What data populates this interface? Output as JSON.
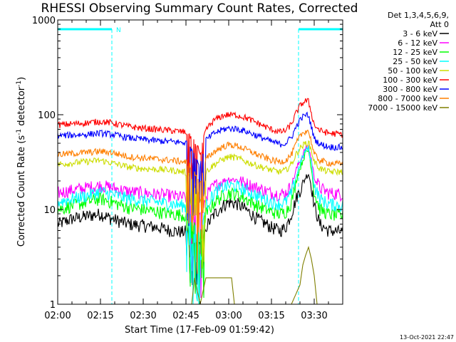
{
  "chart_data": {
    "type": "line",
    "title": "RHESSI Observing Summary Count Rates, Corrected",
    "xlabel": "Start Time (17-Feb-09 01:59:42)",
    "ylabel_text": "Corrected Count Rate (s",
    "ylabel_sup1": "-1",
    "ylabel_mid": " detector",
    "ylabel_sup2": "-1",
    "ylabel_end": ")",
    "y_scale": "log",
    "ylim": [
      1,
      1000
    ],
    "xlim_minutes": [
      0,
      100
    ],
    "x_ticks": [
      {
        "min": 0,
        "label": "02:00"
      },
      {
        "min": 15,
        "label": "02:15"
      },
      {
        "min": 30,
        "label": "02:30"
      },
      {
        "min": 45,
        "label": "02:45"
      },
      {
        "min": 60,
        "label": "03:00"
      },
      {
        "min": 75,
        "label": "03:15"
      },
      {
        "min": 90,
        "label": "03:30"
      }
    ],
    "y_ticks": [
      {
        "val": 1,
        "label": "1"
      },
      {
        "val": 10,
        "label": "10"
      },
      {
        "val": 100,
        "label": "100"
      },
      {
        "val": 1000,
        "label": "1000"
      }
    ],
    "legend_header": [
      "Det 1,3,4,5,6,9,",
      "Att 0"
    ],
    "night_intervals": [
      [
        0,
        19
      ],
      [
        84.5,
        100
      ]
    ],
    "night_color": "#00ffff",
    "saa_flag_label": "N",
    "saa_flag_at": 19,
    "series": [
      {
        "name": "3 - 6 keV",
        "color": "#000000",
        "points": [
          [
            0,
            7
          ],
          [
            5,
            8
          ],
          [
            10,
            8.5
          ],
          [
            15,
            9
          ],
          [
            19,
            8
          ],
          [
            25,
            7
          ],
          [
            30,
            6.8
          ],
          [
            35,
            6.5
          ],
          [
            40,
            6
          ],
          [
            44,
            5.8
          ],
          [
            46,
            6
          ],
          [
            50,
            4
          ],
          [
            52,
            6.5
          ],
          [
            55,
            9
          ],
          [
            58,
            11
          ],
          [
            60,
            12
          ],
          [
            63,
            11.5
          ],
          [
            66,
            10
          ],
          [
            70,
            8
          ],
          [
            75,
            6.5
          ],
          [
            78,
            6
          ],
          [
            80,
            6.5
          ],
          [
            82,
            9
          ],
          [
            84,
            14
          ],
          [
            85.5,
            17
          ],
          [
            87,
            22
          ],
          [
            88,
            24
          ],
          [
            89,
            18
          ],
          [
            90,
            11
          ],
          [
            92,
            7
          ],
          [
            95,
            6
          ],
          [
            100,
            5.8
          ]
        ]
      },
      {
        "name": "6 - 12 keV",
        "color": "#ff00ff",
        "points": [
          [
            0,
            15
          ],
          [
            5,
            16
          ],
          [
            10,
            17
          ],
          [
            15,
            18
          ],
          [
            19,
            17
          ],
          [
            25,
            15.5
          ],
          [
            30,
            15
          ],
          [
            35,
            14.5
          ],
          [
            40,
            14
          ],
          [
            44,
            13.5
          ],
          [
            46,
            13
          ],
          [
            50,
            8
          ],
          [
            52,
            14
          ],
          [
            55,
            18
          ],
          [
            58,
            20
          ],
          [
            60,
            21
          ],
          [
            63,
            20.5
          ],
          [
            66,
            19
          ],
          [
            70,
            17
          ],
          [
            75,
            15
          ],
          [
            78,
            14.5
          ],
          [
            80,
            15
          ],
          [
            82,
            18
          ],
          [
            84,
            28
          ],
          [
            85.5,
            35
          ],
          [
            87,
            44
          ],
          [
            88,
            46
          ],
          [
            89,
            34
          ],
          [
            90,
            22
          ],
          [
            92,
            17
          ],
          [
            95,
            15
          ],
          [
            100,
            14.5
          ]
        ]
      },
      {
        "name": "12 - 25 keV",
        "color": "#00ff00",
        "points": [
          [
            0,
            10
          ],
          [
            5,
            11
          ],
          [
            10,
            12
          ],
          [
            15,
            13
          ],
          [
            19,
            12
          ],
          [
            25,
            10.5
          ],
          [
            30,
            10
          ],
          [
            35,
            9.5
          ],
          [
            40,
            9
          ],
          [
            44,
            8.8
          ],
          [
            46,
            8.5
          ],
          [
            50,
            5
          ],
          [
            52,
            9
          ],
          [
            55,
            12
          ],
          [
            58,
            14
          ],
          [
            60,
            15
          ],
          [
            63,
            14.5
          ],
          [
            66,
            13
          ],
          [
            70,
            11
          ],
          [
            75,
            9.5
          ],
          [
            78,
            9
          ],
          [
            80,
            9.5
          ],
          [
            82,
            12
          ],
          [
            84,
            22
          ],
          [
            85.5,
            30
          ],
          [
            87,
            40
          ],
          [
            88,
            42
          ],
          [
            89,
            28
          ],
          [
            90,
            15
          ],
          [
            92,
            10
          ],
          [
            95,
            9
          ],
          [
            100,
            8.5
          ]
        ]
      },
      {
        "name": "25 - 50 keV",
        "color": "#00ffff",
        "points": [
          [
            0,
            12
          ],
          [
            5,
            13
          ],
          [
            10,
            14
          ],
          [
            15,
            15.5
          ],
          [
            19,
            14.5
          ],
          [
            25,
            13
          ],
          [
            30,
            12.5
          ],
          [
            35,
            12
          ],
          [
            40,
            11.5
          ],
          [
            44,
            11
          ],
          [
            46,
            10.5
          ],
          [
            50,
            6
          ],
          [
            52,
            11
          ],
          [
            55,
            15
          ],
          [
            58,
            17
          ],
          [
            60,
            18
          ],
          [
            63,
            17.5
          ],
          [
            66,
            16
          ],
          [
            70,
            14
          ],
          [
            75,
            12
          ],
          [
            78,
            11.5
          ],
          [
            80,
            12
          ],
          [
            82,
            15
          ],
          [
            84,
            24
          ],
          [
            85.5,
            33
          ],
          [
            87,
            42
          ],
          [
            88,
            44
          ],
          [
            89,
            31
          ],
          [
            90,
            18
          ],
          [
            92,
            13
          ],
          [
            95,
            11.5
          ],
          [
            100,
            11
          ]
        ]
      },
      {
        "name": "50 - 100 keV",
        "color": "#ccdd00",
        "points": [
          [
            0,
            30
          ],
          [
            5,
            31
          ],
          [
            10,
            32
          ],
          [
            15,
            33
          ],
          [
            19,
            31
          ],
          [
            25,
            28
          ],
          [
            30,
            27
          ],
          [
            35,
            26.5
          ],
          [
            40,
            26
          ],
          [
            44,
            25
          ],
          [
            46,
            24
          ],
          [
            50,
            14
          ],
          [
            52,
            25
          ],
          [
            55,
            30
          ],
          [
            58,
            34
          ],
          [
            60,
            36
          ],
          [
            63,
            35
          ],
          [
            66,
            32
          ],
          [
            70,
            29
          ],
          [
            75,
            26
          ],
          [
            78,
            25
          ],
          [
            80,
            26
          ],
          [
            82,
            30
          ],
          [
            84,
            40
          ],
          [
            85.5,
            46
          ],
          [
            87,
            50
          ],
          [
            88,
            51
          ],
          [
            89,
            42
          ],
          [
            90,
            32
          ],
          [
            92,
            27
          ],
          [
            95,
            25
          ],
          [
            100,
            25
          ]
        ]
      },
      {
        "name": "100 - 300 keV",
        "color": "#ff0000",
        "points": [
          [
            0,
            78
          ],
          [
            5,
            80
          ],
          [
            10,
            82
          ],
          [
            15,
            85
          ],
          [
            19,
            82
          ],
          [
            25,
            75
          ],
          [
            30,
            72
          ],
          [
            35,
            70
          ],
          [
            40,
            68
          ],
          [
            44,
            66
          ],
          [
            46,
            64
          ],
          [
            50,
            40
          ],
          [
            52,
            70
          ],
          [
            55,
            88
          ],
          [
            58,
            98
          ],
          [
            60,
            100
          ],
          [
            63,
            99
          ],
          [
            66,
            93
          ],
          [
            70,
            82
          ],
          [
            75,
            70
          ],
          [
            78,
            66
          ],
          [
            80,
            68
          ],
          [
            82,
            80
          ],
          [
            84,
            110
          ],
          [
            85.5,
            130
          ],
          [
            87,
            140
          ],
          [
            88,
            138
          ],
          [
            89,
            105
          ],
          [
            90,
            78
          ],
          [
            92,
            68
          ],
          [
            95,
            64
          ],
          [
            100,
            62
          ]
        ]
      },
      {
        "name": "300 - 800 keV",
        "color": "#0000ff",
        "points": [
          [
            0,
            60
          ],
          [
            5,
            61
          ],
          [
            10,
            62
          ],
          [
            15,
            64
          ],
          [
            19,
            62
          ],
          [
            25,
            57
          ],
          [
            30,
            55
          ],
          [
            35,
            53
          ],
          [
            40,
            52
          ],
          [
            44,
            51
          ],
          [
            46,
            50
          ],
          [
            50,
            30
          ],
          [
            52,
            54
          ],
          [
            55,
            64
          ],
          [
            58,
            70
          ],
          [
            60,
            72
          ],
          [
            63,
            71
          ],
          [
            66,
            67
          ],
          [
            70,
            60
          ],
          [
            75,
            52
          ],
          [
            78,
            49
          ],
          [
            80,
            50
          ],
          [
            82,
            58
          ],
          [
            84,
            78
          ],
          [
            85.5,
            92
          ],
          [
            87,
            100
          ],
          [
            88,
            98
          ],
          [
            89,
            75
          ],
          [
            90,
            56
          ],
          [
            92,
            49
          ],
          [
            95,
            46
          ],
          [
            100,
            45
          ]
        ]
      },
      {
        "name": "800 - 7000 keV",
        "color": "#ff7f00",
        "points": [
          [
            0,
            38
          ],
          [
            5,
            39
          ],
          [
            10,
            40
          ],
          [
            15,
            41
          ],
          [
            19,
            40
          ],
          [
            25,
            36
          ],
          [
            30,
            35
          ],
          [
            35,
            34
          ],
          [
            40,
            33
          ],
          [
            44,
            32
          ],
          [
            46,
            31
          ],
          [
            50,
            18
          ],
          [
            52,
            34
          ],
          [
            55,
            41
          ],
          [
            58,
            46
          ],
          [
            60,
            48
          ],
          [
            63,
            47
          ],
          [
            66,
            43
          ],
          [
            70,
            38
          ],
          [
            75,
            33
          ],
          [
            78,
            32
          ],
          [
            80,
            33
          ],
          [
            82,
            38
          ],
          [
            84,
            52
          ],
          [
            85.5,
            62
          ],
          [
            87,
            68
          ],
          [
            88,
            67
          ],
          [
            89,
            52
          ],
          [
            90,
            38
          ],
          [
            92,
            33
          ],
          [
            95,
            31
          ],
          [
            100,
            30
          ]
        ]
      },
      {
        "name": "7000 - 15000 keV",
        "color": "#7f7f00",
        "points": [
          [
            44,
            1
          ],
          [
            47,
            1
          ],
          [
            48,
            1.9
          ],
          [
            50,
            1
          ],
          [
            52,
            1.9
          ],
          [
            53,
            1.9
          ],
          [
            60,
            1.9
          ],
          [
            61,
            1.9
          ],
          [
            62,
            1
          ],
          [
            82,
            1
          ],
          [
            85,
            1.6
          ],
          [
            86,
            2.6
          ],
          [
            87,
            3.3
          ],
          [
            88,
            4
          ],
          [
            89,
            3
          ],
          [
            90,
            2
          ],
          [
            91,
            1
          ],
          [
            100,
            1
          ]
        ]
      }
    ]
  },
  "footer_stamp": "13-Oct-2021 22:47"
}
